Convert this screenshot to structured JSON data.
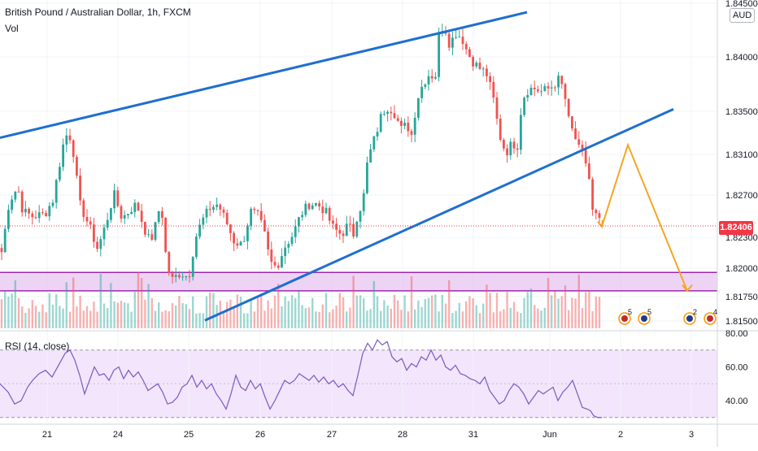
{
  "header": {
    "title": "British Pound / Australian Dollar, 1h, FXCM",
    "volume_label": "Vol",
    "currency": "AUD"
  },
  "price_axis": {
    "labels": [
      "1.84500",
      "1.84000",
      "1.83500",
      "1.83100",
      "1.82700",
      "1.82300",
      "1.82000",
      "1.81750",
      "1.81500"
    ],
    "current_price": "1.82406"
  },
  "rsi": {
    "label": "RSI (14, close)",
    "axis_labels": [
      "80.00",
      "60.00",
      "40.00"
    ]
  },
  "time_axis": {
    "labels": [
      "21",
      "24",
      "25",
      "26",
      "27",
      "28",
      "31",
      "Jun",
      "2",
      "3"
    ]
  },
  "events": [
    "5",
    "5",
    "2",
    "4"
  ],
  "colors": {
    "bull": "#26a69a",
    "bear": "#ef5350",
    "trendline": "#1e6fd0",
    "projection": "#f5a623",
    "zone_fill": "#e7c6f0",
    "zone_border": "#9c27b0",
    "rsi_line": "#7e57c2",
    "rsi_band": "#f3e5fb",
    "price_tag": "#f23645"
  },
  "chart_data": [
    {
      "type": "candlestick",
      "title": "British Pound / Australian Dollar, 1h, FXCM",
      "x": [
        "21",
        "24",
        "25",
        "26",
        "27",
        "28",
        "31",
        "Jun",
        "2",
        "3"
      ],
      "ylim": [
        1.8145,
        1.8458
      ],
      "anchors": [
        [
          0,
          1.8235
        ],
        [
          3,
          1.8205
        ],
        [
          8,
          1.8255
        ],
        [
          16,
          1.8272
        ],
        [
          22,
          1.8278
        ],
        [
          28,
          1.8255
        ],
        [
          40,
          1.825
        ],
        [
          55,
          1.8252
        ],
        [
          65,
          1.8266
        ],
        [
          80,
          1.833
        ],
        [
          88,
          1.8327
        ],
        [
          98,
          1.8262
        ],
        [
          110,
          1.824
        ],
        [
          120,
          1.8218
        ],
        [
          130,
          1.8242
        ],
        [
          140,
          1.8272
        ],
        [
          150,
          1.8248
        ],
        [
          162,
          1.8258
        ],
        [
          168,
          1.8262
        ],
        [
          175,
          1.8244
        ],
        [
          182,
          1.8228
        ],
        [
          188,
          1.823
        ],
        [
          196,
          1.8258
        ],
        [
          200,
          1.825
        ],
        [
          205,
          1.82
        ],
        [
          212,
          1.8188
        ],
        [
          222,
          1.8195
        ],
        [
          232,
          1.819
        ],
        [
          240,
          1.8228
        ],
        [
          248,
          1.8245
        ],
        [
          258,
          1.8258
        ],
        [
          268,
          1.8262
        ],
        [
          278,
          1.8245
        ],
        [
          288,
          1.8225
        ],
        [
          298,
          1.8222
        ],
        [
          308,
          1.8255
        ],
        [
          318,
          1.825
        ],
        [
          326,
          1.823
        ],
        [
          332,
          1.8205
        ],
        [
          340,
          1.82
        ],
        [
          350,
          1.822
        ],
        [
          360,
          1.8232
        ],
        [
          370,
          1.8252
        ],
        [
          380,
          1.8262
        ],
        [
          390,
          1.8262
        ],
        [
          400,
          1.8255
        ],
        [
          410,
          1.8238
        ],
        [
          420,
          1.8232
        ],
        [
          428,
          1.8242
        ],
        [
          435,
          1.8232
        ],
        [
          440,
          1.8255
        ],
        [
          446,
          1.8262
        ],
        [
          452,
          1.8305
        ],
        [
          462,
          1.833
        ],
        [
          470,
          1.8352
        ],
        [
          478,
          1.8358
        ],
        [
          486,
          1.835
        ],
        [
          493,
          1.8335
        ],
        [
          500,
          1.834
        ],
        [
          506,
          1.833
        ],
        [
          513,
          1.8365
        ],
        [
          520,
          1.838
        ],
        [
          528,
          1.839
        ],
        [
          535,
          1.8385
        ],
        [
          540,
          1.843
        ],
        [
          546,
          1.8438
        ],
        [
          553,
          1.8418
        ],
        [
          560,
          1.843
        ],
        [
          568,
          1.8425
        ],
        [
          575,
          1.841
        ],
        [
          583,
          1.84
        ],
        [
          590,
          1.8395
        ],
        [
          598,
          1.839
        ],
        [
          606,
          1.8368
        ],
        [
          614,
          1.833
        ],
        [
          622,
          1.8312
        ],
        [
          630,
          1.8322
        ],
        [
          636,
          1.8318
        ],
        [
          642,
          1.8365
        ],
        [
          650,
          1.8375
        ],
        [
          658,
          1.8375
        ],
        [
          666,
          1.8372
        ],
        [
          674,
          1.8375
        ],
        [
          680,
          1.8378
        ],
        [
          688,
          1.8385
        ],
        [
          694,
          1.837
        ],
        [
          700,
          1.834
        ],
        [
          706,
          1.833
        ],
        [
          712,
          1.8315
        ],
        [
          718,
          1.831
        ],
        [
          724,
          1.829
        ],
        [
          728,
          1.8255
        ],
        [
          733,
          1.825
        ],
        [
          740,
          1.824
        ]
      ],
      "trendlines": [
        {
          "from": [
            "",
            1.8327
          ],
          "to": [
            "",
            1.845
          ]
        },
        {
          "from": [
            "",
            1.8148
          ],
          "to": [
            "",
            1.8355
          ]
        }
      ],
      "zone": {
        "from": 1.8177,
        "to": 1.8195
      },
      "projection": [
        [
          740,
          1.824
        ],
        [
          772,
          1.832
        ],
        [
          845,
          1.8177
        ]
      ]
    },
    {
      "type": "bar",
      "name": "Vol"
    },
    {
      "type": "line",
      "title": "RSI (14, close)",
      "ylim": [
        27,
        80
      ],
      "bands": [
        30,
        70
      ],
      "points": [
        [
          0,
          50
        ],
        [
          10,
          45
        ],
        [
          18,
          38
        ],
        [
          26,
          40
        ],
        [
          34,
          48
        ],
        [
          40,
          52
        ],
        [
          48,
          56
        ],
        [
          56,
          58
        ],
        [
          64,
          54
        ],
        [
          72,
          61
        ],
        [
          80,
          68
        ],
        [
          86,
          70
        ],
        [
          92,
          64
        ],
        [
          98,
          55
        ],
        [
          104,
          44
        ],
        [
          110,
          52
        ],
        [
          116,
          60
        ],
        [
          122,
          55
        ],
        [
          128,
          56
        ],
        [
          134,
          52
        ],
        [
          140,
          58
        ],
        [
          146,
          60
        ],
        [
          152,
          53
        ],
        [
          158,
          58
        ],
        [
          164,
          54
        ],
        [
          170,
          57
        ],
        [
          176,
          52
        ],
        [
          182,
          46
        ],
        [
          188,
          48
        ],
        [
          194,
          50
        ],
        [
          200,
          45
        ],
        [
          206,
          38
        ],
        [
          212,
          39
        ],
        [
          218,
          42
        ],
        [
          224,
          48
        ],
        [
          230,
          50
        ],
        [
          236,
          55
        ],
        [
          242,
          48
        ],
        [
          248,
          52
        ],
        [
          254,
          47
        ],
        [
          260,
          50
        ],
        [
          266,
          44
        ],
        [
          272,
          40
        ],
        [
          278,
          35
        ],
        [
          284,
          44
        ],
        [
          290,
          55
        ],
        [
          296,
          48
        ],
        [
          302,
          46
        ],
        [
          308,
          52
        ],
        [
          314,
          47
        ],
        [
          320,
          50
        ],
        [
          326,
          42
        ],
        [
          332,
          35
        ],
        [
          338,
          40
        ],
        [
          344,
          46
        ],
        [
          350,
          52
        ],
        [
          356,
          50
        ],
        [
          362,
          52
        ],
        [
          368,
          56
        ],
        [
          374,
          54
        ],
        [
          380,
          52
        ],
        [
          386,
          55
        ],
        [
          392,
          51
        ],
        [
          398,
          54
        ],
        [
          404,
          50
        ],
        [
          410,
          52
        ],
        [
          416,
          48
        ],
        [
          422,
          50
        ],
        [
          428,
          46
        ],
        [
          434,
          43
        ],
        [
          440,
          55
        ],
        [
          446,
          68
        ],
        [
          452,
          74
        ],
        [
          458,
          70
        ],
        [
          464,
          76
        ],
        [
          470,
          73
        ],
        [
          476,
          75
        ],
        [
          482,
          66
        ],
        [
          488,
          63
        ],
        [
          494,
          65
        ],
        [
          500,
          58
        ],
        [
          506,
          62
        ],
        [
          512,
          60
        ],
        [
          518,
          66
        ],
        [
          524,
          64
        ],
        [
          530,
          70
        ],
        [
          536,
          64
        ],
        [
          542,
          67
        ],
        [
          548,
          60
        ],
        [
          554,
          58
        ],
        [
          560,
          61
        ],
        [
          566,
          56
        ],
        [
          572,
          55
        ],
        [
          578,
          53
        ],
        [
          584,
          52
        ],
        [
          590,
          50
        ],
        [
          596,
          54
        ],
        [
          602,
          46
        ],
        [
          608,
          42
        ],
        [
          614,
          38
        ],
        [
          620,
          40
        ],
        [
          626,
          46
        ],
        [
          632,
          50
        ],
        [
          638,
          48
        ],
        [
          644,
          44
        ],
        [
          650,
          38
        ],
        [
          656,
          42
        ],
        [
          662,
          46
        ],
        [
          668,
          44
        ],
        [
          674,
          46
        ],
        [
          680,
          48
        ],
        [
          686,
          40
        ],
        [
          692,
          45
        ],
        [
          698,
          48
        ],
        [
          704,
          52
        ],
        [
          710,
          44
        ],
        [
          716,
          36
        ],
        [
          722,
          35
        ],
        [
          726,
          34
        ],
        [
          730,
          31
        ],
        [
          735,
          30
        ],
        [
          740,
          30
        ]
      ]
    }
  ]
}
